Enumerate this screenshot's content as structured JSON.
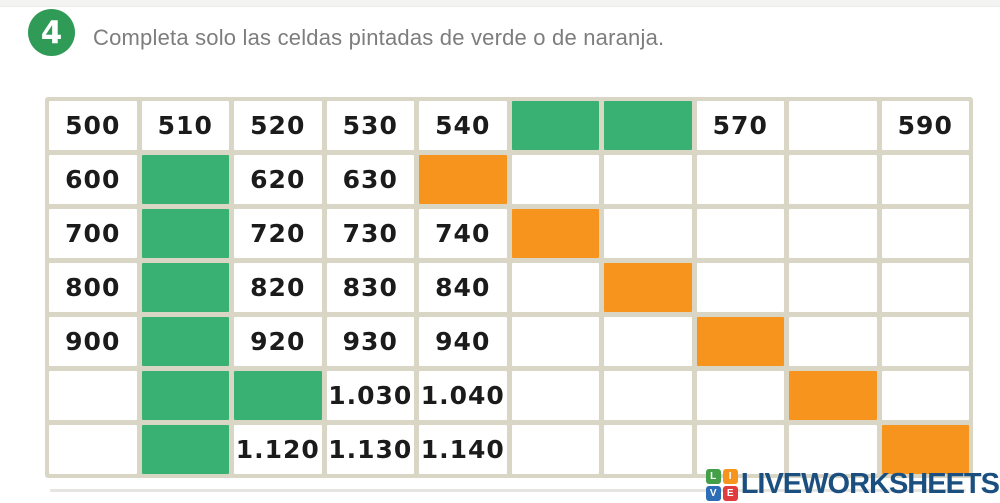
{
  "header": {
    "badge_number": "4",
    "instruction": "Completa solo las celdas pintadas de verde o de naranja."
  },
  "table": {
    "rows": [
      {
        "cells": [
          {
            "value": "500",
            "color": "white"
          },
          {
            "value": "510",
            "color": "white"
          },
          {
            "value": "520",
            "color": "white"
          },
          {
            "value": "530",
            "color": "white"
          },
          {
            "value": "540",
            "color": "white"
          },
          {
            "value": "",
            "color": "green"
          },
          {
            "value": "",
            "color": "green"
          },
          {
            "value": "570",
            "color": "white"
          },
          {
            "value": "",
            "color": "white"
          },
          {
            "value": "590",
            "color": "white"
          }
        ]
      },
      {
        "cells": [
          {
            "value": "600",
            "color": "white"
          },
          {
            "value": "",
            "color": "green"
          },
          {
            "value": "620",
            "color": "white"
          },
          {
            "value": "630",
            "color": "white"
          },
          {
            "value": "",
            "color": "orange"
          },
          {
            "value": "",
            "color": "white"
          },
          {
            "value": "",
            "color": "white"
          },
          {
            "value": "",
            "color": "white"
          },
          {
            "value": "",
            "color": "white"
          },
          {
            "value": "",
            "color": "white"
          }
        ]
      },
      {
        "cells": [
          {
            "value": "700",
            "color": "white"
          },
          {
            "value": "",
            "color": "green"
          },
          {
            "value": "720",
            "color": "white"
          },
          {
            "value": "730",
            "color": "white"
          },
          {
            "value": "740",
            "color": "white"
          },
          {
            "value": "",
            "color": "orange"
          },
          {
            "value": "",
            "color": "white"
          },
          {
            "value": "",
            "color": "white"
          },
          {
            "value": "",
            "color": "white"
          },
          {
            "value": "",
            "color": "white"
          }
        ]
      },
      {
        "cells": [
          {
            "value": "800",
            "color": "white"
          },
          {
            "value": "",
            "color": "green"
          },
          {
            "value": "820",
            "color": "white"
          },
          {
            "value": "830",
            "color": "white"
          },
          {
            "value": "840",
            "color": "white"
          },
          {
            "value": "",
            "color": "white"
          },
          {
            "value": "",
            "color": "orange"
          },
          {
            "value": "",
            "color": "white"
          },
          {
            "value": "",
            "color": "white"
          },
          {
            "value": "",
            "color": "white"
          }
        ]
      },
      {
        "cells": [
          {
            "value": "900",
            "color": "white"
          },
          {
            "value": "",
            "color": "green"
          },
          {
            "value": "920",
            "color": "white"
          },
          {
            "value": "930",
            "color": "white"
          },
          {
            "value": "940",
            "color": "white"
          },
          {
            "value": "",
            "color": "white"
          },
          {
            "value": "",
            "color": "white"
          },
          {
            "value": "",
            "color": "orange"
          },
          {
            "value": "",
            "color": "white"
          },
          {
            "value": "",
            "color": "white"
          }
        ]
      },
      {
        "cells": [
          {
            "value": "",
            "color": "white"
          },
          {
            "value": "",
            "color": "green"
          },
          {
            "value": "",
            "color": "green"
          },
          {
            "value": "1.030",
            "color": "white"
          },
          {
            "value": "1.040",
            "color": "white"
          },
          {
            "value": "",
            "color": "white"
          },
          {
            "value": "",
            "color": "white"
          },
          {
            "value": "",
            "color": "white"
          },
          {
            "value": "",
            "color": "orange"
          },
          {
            "value": "",
            "color": "white"
          }
        ]
      },
      {
        "cells": [
          {
            "value": "",
            "color": "white"
          },
          {
            "value": "",
            "color": "green"
          },
          {
            "value": "1.120",
            "color": "white"
          },
          {
            "value": "1.130",
            "color": "white"
          },
          {
            "value": "1.140",
            "color": "white"
          },
          {
            "value": "",
            "color": "white"
          },
          {
            "value": "",
            "color": "white"
          },
          {
            "value": "",
            "color": "white"
          },
          {
            "value": "",
            "color": "white"
          },
          {
            "value": "",
            "color": "orange"
          }
        ]
      }
    ]
  },
  "logo": {
    "text": "LIVEWORKSHEETS",
    "text_color": "#1b4f80",
    "mini_squares": [
      {
        "letter": "L",
        "color": "#43a047"
      },
      {
        "letter": "I",
        "color": "#f7941e"
      },
      {
        "letter": "V",
        "color": "#2d6db5"
      },
      {
        "letter": "E",
        "color": "#e23b3e"
      }
    ]
  },
  "colors": {
    "green_cell": "#38b173",
    "orange_cell": "#f7941e",
    "grid_line": "#d9d6c6",
    "badge_green": "#2f9b57",
    "number_ink": "#1b1b1b",
    "instruction_gray": "#7d7d7d"
  }
}
